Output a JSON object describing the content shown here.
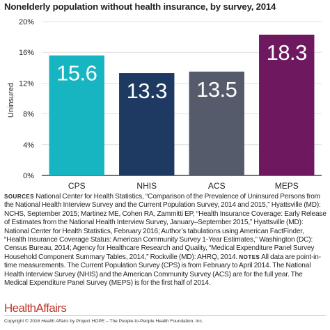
{
  "chart_data": {
    "type": "bar",
    "title": "Nonelderly population without health insurance, by survey, 2014",
    "ylabel": "Uninsured",
    "xlabel": "",
    "ylim": [
      0,
      20
    ],
    "yticks": [
      0,
      4,
      8,
      12,
      16,
      20
    ],
    "ytick_labels": [
      "0%",
      "4%",
      "8%",
      "12%",
      "16%",
      "20%"
    ],
    "categories": [
      "CPS",
      "NHIS",
      "ACS",
      "MEPS"
    ],
    "values": [
      15.6,
      13.3,
      13.5,
      18.3
    ],
    "data_labels": [
      "15.6",
      "13.3",
      "13.5",
      "18.3"
    ],
    "colors": [
      "#17b5c1",
      "#1e3a62",
      "#555b6b",
      "#6e1860"
    ],
    "grid": true
  },
  "notes": {
    "sources_tag": "Sources",
    "sources_text": "National Center for Health Statistics, “Comparison of the Prevalence of Uninsured Persons from the National Health Interview Survey and the Current Population Survey, 2014 and 2015,” Hyattsville (MD): NCHS, September 2015; Martinez ME, Cohen RA, Zammitti EP, “Health Insurance Coverage: Early Release of Estimates from the National Health Interview Survey, January–September 2015,” Hyattsville (MD): National Center for Health Statistics, February 2016; Author’s tabulations using American FactFinder, “Health Insurance Coverage Status: American Community Survey 1-Year Estimates,” Washington (DC): Census Bureau, 2014; Agency for Healthcare Research and Quality, “Medical Expenditure Panel Survey Household Component Summary Tables, 2014,” Rockville (MD): AHRQ, 2014.",
    "notes_tag": "Notes",
    "notes_text": "All data are point-in-time measurements. The Current Population Survey (CPS) is from February to April 2014. The National Health Interview Survey (NHIS) and the American Community Survey (ACS) are for the full year. The Medical Expenditure Panel Survey (MEPS) is for the first half of 2014."
  },
  "footer": {
    "logo_health": "Health",
    "logo_affairs": "Affairs",
    "copyright_prefix": "Copyright © 2016 ",
    "copyright_journal": "Health Affairs",
    "copyright_suffix": " by Project HOPE – The People-to-People Health Foundation, Inc."
  }
}
